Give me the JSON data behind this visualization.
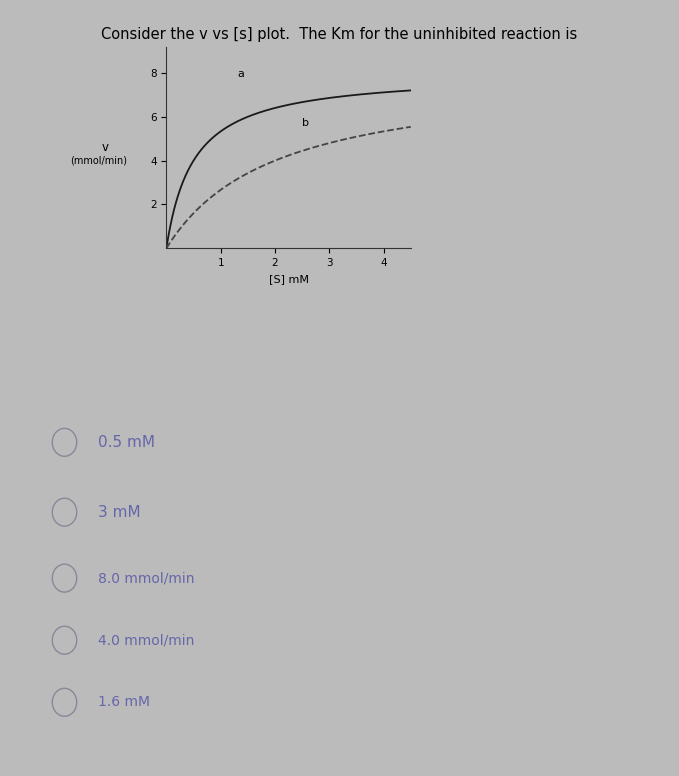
{
  "title": "Consider the v vs [s] plot.  The Km for the uninhibited reaction is",
  "title_fontsize": 10.5,
  "plot_xlabel": "[S] mM",
  "ylim": [
    0,
    9.2
  ],
  "xlim": [
    0,
    4.5
  ],
  "yticks": [
    2.0,
    4.0,
    6.0,
    8.0
  ],
  "xticks": [
    1.0,
    2.0,
    3.0,
    4.0
  ],
  "vmax_a": 8.0,
  "km_a": 0.5,
  "vmax_b": 8.0,
  "km_b": 2.0,
  "curve_a_color": "#1a1a1a",
  "curve_b_color": "#444444",
  "label_a": "a",
  "label_b": "b",
  "bg_color": "#bbbbbb",
  "plot_bg_color": "#bbbbbb",
  "radio_options": [
    "0.5 mM",
    "3 mM",
    "8.0 mmol/min",
    "4.0 mmol/min",
    "1.6 mM"
  ],
  "radio_text_color": "#6666aa",
  "radio_circle_color": "#888899"
}
